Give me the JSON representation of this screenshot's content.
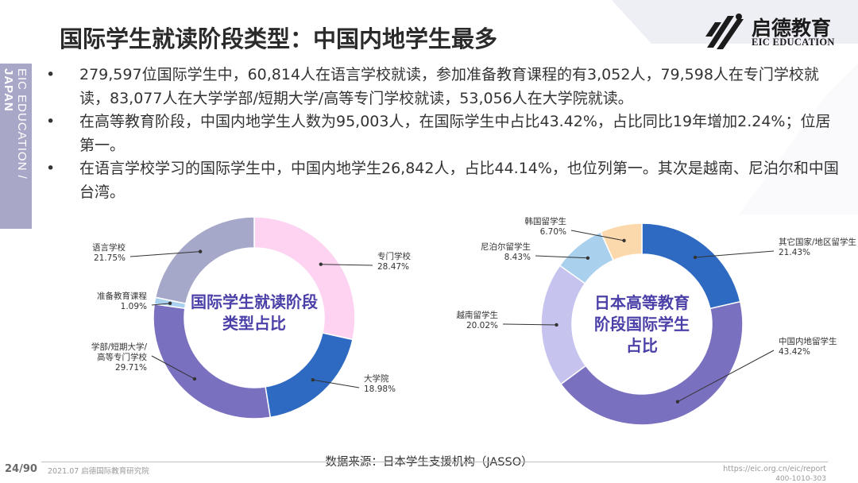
{
  "side_label": {
    "prefix": "EIC EDUCATION / ",
    "bold": "JAPAN"
  },
  "title": "国际学生就读阶段类型：中国内地学生最多",
  "logo": {
    "name": "启德教育",
    "en": "EIC EDUCATION"
  },
  "bullet_symbol": "•",
  "bullets": [
    "279,597位国际学生中，60,814人在语言学校就读，参加准备教育课程的有3,052人，79,598人在专门学校就读，83,077人在大学学部/短期大学/高等专门学校就读，53,056人在大学院就读。",
    "在高等教育阶段，中国内地学生人数为95,003人，在国际学生中占比43.42%，占比同比19年增加2.24%；位居第一。",
    "在语言学校学习的国际学生中，中国内地学生26,842人，占比44.14%，也位列第一。其次是越南、尼泊尔和中国台湾。"
  ],
  "chart_data": [
    {
      "type": "pie",
      "donut": true,
      "title": "国际学生就读阶段类型占比",
      "title_lines": [
        "国际学生就读阶段",
        "类型占比"
      ],
      "slices": [
        {
          "label": "专门学校",
          "value": 28.47,
          "value_label": "28.47%",
          "color": "#fdd3f1"
        },
        {
          "label": "大学院",
          "value": 18.98,
          "value_label": "18.98%",
          "color": "#2e6ac2"
        },
        {
          "label": "学部/短期大学/高等专门学校",
          "label_lines": [
            "学部/短期大学/",
            "高等专门学校"
          ],
          "value": 29.71,
          "value_label": "29.71%",
          "color": "#7a70c0"
        },
        {
          "label": "准备教育课程",
          "value": 1.09,
          "value_label": "1.09%",
          "color": "#a9d0ec"
        },
        {
          "label": "语言学校",
          "value": 21.75,
          "value_label": "21.75%",
          "color": "#a6a8c9"
        }
      ]
    },
    {
      "type": "pie",
      "donut": true,
      "title": "日本高等教育阶段国际学生占比",
      "title_lines": [
        "日本高等教育",
        "阶段国际学生",
        "占比"
      ],
      "slices": [
        {
          "label": "其它国家/地区留学生",
          "value": 21.43,
          "value_label": "21.43%",
          "color": "#2e6ac2"
        },
        {
          "label": "中国内地留学生",
          "value": 43.42,
          "value_label": "43.42%",
          "color": "#7a70c0"
        },
        {
          "label": "越南留学生",
          "value": 20.02,
          "value_label": "20.02%",
          "color": "#c6c4ee"
        },
        {
          "label": "尼泊尔留学生",
          "value": 8.43,
          "value_label": "8.43%",
          "color": "#a9d0ec"
        },
        {
          "label": "韩国留学生",
          "value": 6.7,
          "value_label": "6.70%",
          "color": "#fcd9ad"
        }
      ]
    }
  ],
  "source": "数据来源：日本学生支援机构（JASSO）",
  "footer": {
    "page": "24/90",
    "left": "2021.07 启德国际教育研究院",
    "url": "https://eic.org.cn/eic/report",
    "phone": "400-1010-303"
  }
}
